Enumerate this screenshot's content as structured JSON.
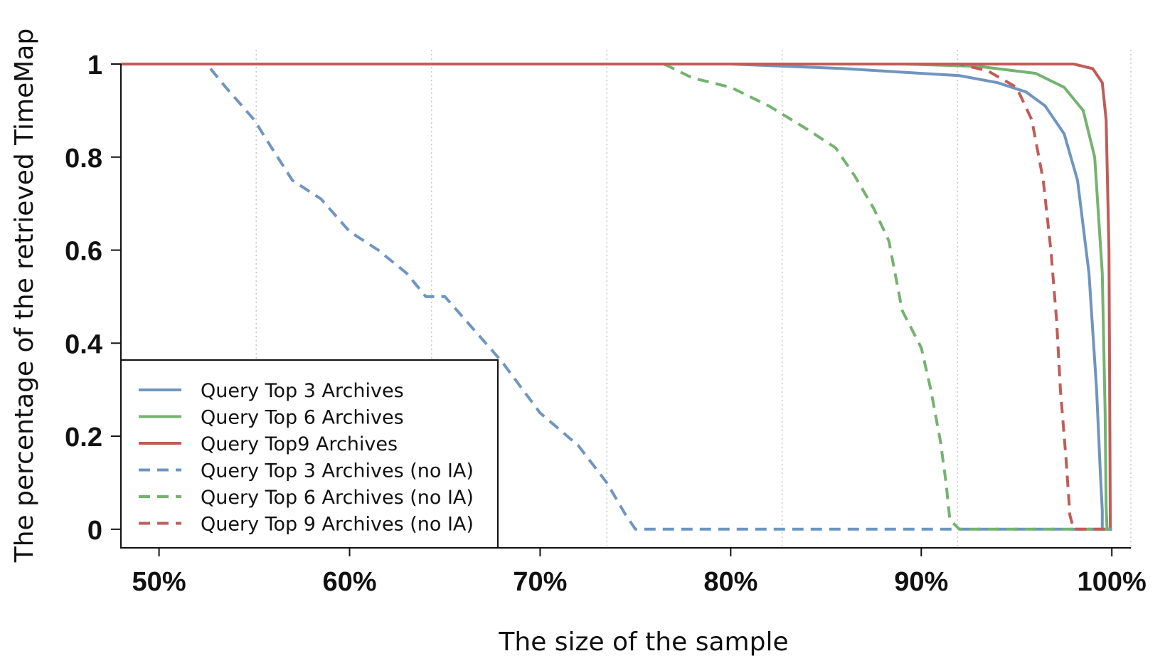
{
  "chart_data": {
    "type": "line",
    "xlabel": "The size of the sample",
    "ylabel": "The percentage of the retrieved TimeMap",
    "xlim": [
      48,
      101
    ],
    "ylim": [
      -0.04,
      1.0
    ],
    "x_ticks": [
      50,
      60,
      70,
      80,
      90,
      100
    ],
    "x_tick_labels": [
      "50%",
      "60%",
      "70%",
      "80%",
      "90%",
      "100%"
    ],
    "y_ticks": [
      0,
      0.2,
      0.4,
      0.6,
      0.8,
      1
    ],
    "y_tick_labels": [
      "0",
      "0.2",
      "0.4",
      "0.6",
      "0.8",
      "1"
    ],
    "grid": "vertical dotted",
    "legend_position": "bottom-left",
    "series": [
      {
        "name": "Query Top 3 Archives",
        "color": "#6f95c0",
        "style": "solid",
        "x": [
          48.0,
          80.0,
          86.0,
          90.0,
          92.0,
          94.0,
          95.5,
          96.5,
          97.5,
          98.2,
          98.8,
          99.2,
          99.4,
          99.5,
          99.5,
          100.0
        ],
        "y": [
          1.0,
          1.0,
          0.99,
          0.98,
          0.975,
          0.96,
          0.94,
          0.91,
          0.85,
          0.75,
          0.55,
          0.3,
          0.12,
          0.04,
          0.0,
          0.0
        ]
      },
      {
        "name": "Query Top 6 Archives",
        "color": "#74b36f",
        "style": "solid",
        "x": [
          48.0,
          89.0,
          93.0,
          96.0,
          97.5,
          98.5,
          99.1,
          99.5,
          99.65,
          99.7,
          99.75,
          100.0
        ],
        "y": [
          1.0,
          1.0,
          0.995,
          0.98,
          0.95,
          0.9,
          0.8,
          0.55,
          0.25,
          0.05,
          0.0,
          0.0
        ]
      },
      {
        "name": "Query Top9 Archives",
        "color": "#c05c58",
        "style": "solid",
        "x": [
          48.0,
          98.0,
          99.0,
          99.5,
          99.7,
          99.85,
          99.9,
          99.92,
          100.0
        ],
        "y": [
          1.0,
          1.0,
          0.99,
          0.96,
          0.88,
          0.6,
          0.2,
          0.0,
          0.0
        ]
      },
      {
        "name": "Query Top 3 Archives (no IA)",
        "color": "#6f95c0",
        "style": "dashed",
        "x": [
          52.7,
          53.5,
          55.0,
          55.6,
          57.0,
          58.5,
          60.0,
          61.5,
          63.0,
          64.0,
          65.0,
          66.5,
          68.0,
          70.0,
          72.0,
          73.5,
          74.5,
          75.0,
          80.0,
          90.0,
          100.0
        ],
        "y": [
          0.99,
          0.95,
          0.88,
          0.84,
          0.75,
          0.71,
          0.64,
          0.6,
          0.55,
          0.5,
          0.5,
          0.43,
          0.36,
          0.25,
          0.18,
          0.1,
          0.03,
          0.0,
          0.0,
          0.0,
          0.0
        ]
      },
      {
        "name": "Query Top 6 Archives (no IA)",
        "color": "#74b36f",
        "style": "dashed",
        "x": [
          76.5,
          78.0,
          80.0,
          82.0,
          84.0,
          85.5,
          86.5,
          87.5,
          88.3,
          89.0,
          90.0,
          90.5,
          91.0,
          91.3,
          91.5,
          92.0,
          100.0
        ],
        "y": [
          1.0,
          0.97,
          0.95,
          0.91,
          0.86,
          0.82,
          0.76,
          0.69,
          0.62,
          0.47,
          0.39,
          0.3,
          0.19,
          0.1,
          0.02,
          0.0,
          0.0
        ]
      },
      {
        "name": "Query Top 9 Archives (no IA)",
        "color": "#c05c58",
        "style": "dashed",
        "x": [
          48.0,
          92.0,
          93.5,
          95.0,
          95.8,
          96.4,
          96.8,
          97.1,
          97.3,
          97.6,
          97.8,
          98.0,
          100.0
        ],
        "y": [
          1.0,
          1.0,
          0.985,
          0.95,
          0.88,
          0.75,
          0.6,
          0.45,
          0.3,
          0.15,
          0.03,
          0.0,
          0.0
        ]
      }
    ]
  }
}
